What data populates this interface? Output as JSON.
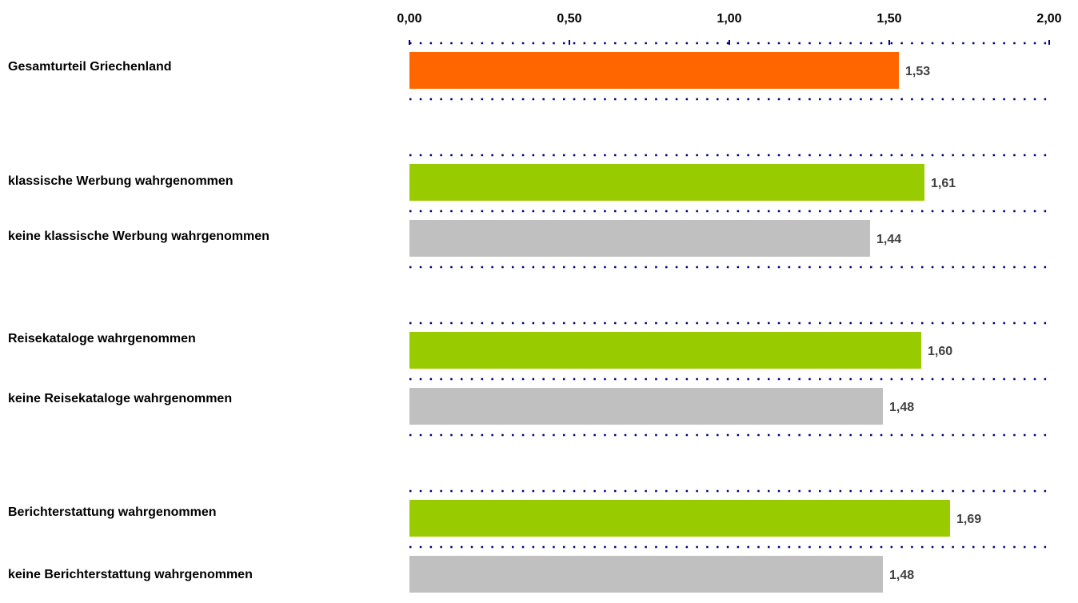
{
  "chart_data": {
    "type": "bar",
    "orientation": "horizontal",
    "xlim": [
      0,
      2
    ],
    "tick_labels": [
      "0,00",
      "0,50",
      "1,00",
      "1,50",
      "2,00"
    ],
    "tick_values": [
      0,
      0.5,
      1,
      1.5,
      2
    ],
    "categories": [
      "Gesamturteil Griechenland",
      "klassische Werbung wahrgenommen",
      "keine klassische Werbung wahrgenommen",
      "Reisekataloge wahrgenommen",
      "keine Reisekataloge wahrgenommen",
      "Berichterstattung wahrgenommen",
      "keine Berichterstattung wahrgenommen"
    ],
    "values": [
      1.53,
      1.61,
      1.44,
      1.6,
      1.48,
      1.69,
      1.48
    ],
    "value_labels": [
      "1,53",
      "1,61",
      "1,44",
      "1,60",
      "1,48",
      "1,69",
      "1,48"
    ],
    "bar_colors": [
      "#FF6600",
      "#99CC00",
      "#C0C0C0",
      "#99CC00",
      "#C0C0C0",
      "#99CC00",
      "#C0C0C0"
    ],
    "axis_color": "#000080",
    "label_color": "#404040",
    "grid": "dotted"
  }
}
